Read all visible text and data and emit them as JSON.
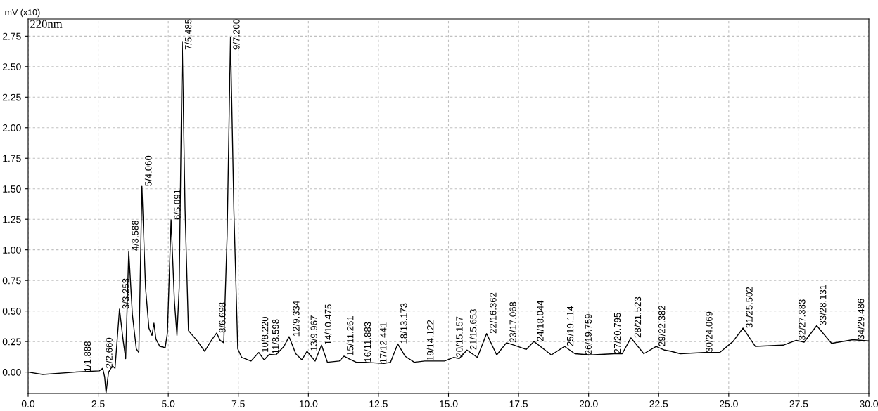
{
  "chart_data": {
    "type": "line",
    "ylabel": "mV (x10)",
    "annotations": [
      "220nm",
      {
        "text": "1/1.888",
        "x": 1.888,
        "y": 0.0
      },
      {
        "text": "2/2.660",
        "x": 2.66,
        "y": 0.03
      },
      {
        "text": "3/3.253",
        "x": 3.253,
        "y": 0.515
      },
      {
        "text": "4/3.588",
        "x": 3.588,
        "y": 0.99
      },
      {
        "text": "5/4.060",
        "x": 4.06,
        "y": 1.52
      },
      {
        "text": "6/5.091",
        "x": 5.091,
        "y": 1.245
      },
      {
        "text": "7/5.485",
        "x": 5.485,
        "y": 2.7
      },
      {
        "text": "8/6.698",
        "x": 6.698,
        "y": 0.32
      },
      {
        "text": "9/7.200",
        "x": 7.2,
        "y": 2.74
      },
      {
        "text": "10/8.220",
        "x": 8.22,
        "y": 0.16
      },
      {
        "text": "11/8.598",
        "x": 8.598,
        "y": 0.145
      },
      {
        "text": "12/9.334",
        "x": 9.334,
        "y": 0.29
      },
      {
        "text": "13/9.967",
        "x": 9.967,
        "y": 0.17
      },
      {
        "text": "14/10.475",
        "x": 10.475,
        "y": 0.22
      },
      {
        "text": "15/11.261",
        "x": 11.261,
        "y": 0.13
      },
      {
        "text": "16/11.883",
        "x": 11.883,
        "y": 0.08
      },
      {
        "text": "17/12.441",
        "x": 12.441,
        "y": 0.07
      },
      {
        "text": "18/13.173",
        "x": 13.173,
        "y": 0.23
      },
      {
        "text": "19/14.122",
        "x": 14.122,
        "y": 0.09
      },
      {
        "text": "20/15.157",
        "x": 15.157,
        "y": 0.12
      },
      {
        "text": "21/15.653",
        "x": 15.653,
        "y": 0.18
      },
      {
        "text": "22/16.362",
        "x": 16.362,
        "y": 0.315
      },
      {
        "text": "23/17.068",
        "x": 17.068,
        "y": 0.24
      },
      {
        "text": "24/18.044",
        "x": 18.044,
        "y": 0.25
      },
      {
        "text": "25/19.114",
        "x": 19.114,
        "y": 0.21
      },
      {
        "text": "26/19.759",
        "x": 19.759,
        "y": 0.14
      },
      {
        "text": "27/20.795",
        "x": 20.795,
        "y": 0.15
      },
      {
        "text": "28/21.523",
        "x": 21.523,
        "y": 0.28
      },
      {
        "text": "29/22.382",
        "x": 22.382,
        "y": 0.21
      },
      {
        "text": "30/24.069",
        "x": 24.069,
        "y": 0.16
      },
      {
        "text": "31/25.502",
        "x": 25.502,
        "y": 0.36
      },
      {
        "text": "32/27.383",
        "x": 27.383,
        "y": 0.26
      },
      {
        "text": "33/28.131",
        "x": 28.131,
        "y": 0.38
      },
      {
        "text": "34/29.486",
        "x": 29.486,
        "y": 0.265
      }
    ],
    "series": [
      {
        "color": "#000000",
        "x": [
          0,
          0.52,
          1.69,
          2.54,
          2.66,
          2.73,
          2.78,
          2.87,
          3.01,
          3.1,
          3.26,
          3.39,
          3.48,
          3.59,
          3.72,
          3.86,
          3.95,
          4.06,
          4.19,
          4.31,
          4.42,
          4.49,
          4.56,
          4.7,
          4.89,
          4.97,
          5.1,
          5.22,
          5.31,
          5.39,
          5.5,
          5.6,
          5.72,
          5.83,
          6.02,
          6.3,
          6.54,
          6.73,
          6.85,
          6.98,
          7.1,
          7.22,
          7.34,
          7.48,
          7.62,
          7.95,
          8.23,
          8.42,
          8.61,
          8.84,
          9.13,
          9.31,
          9.55,
          9.77,
          9.95,
          10.24,
          10.47,
          10.68,
          11.1,
          11.27,
          11.43,
          11.71,
          12.04,
          12.7,
          12.93,
          13.19,
          13.45,
          13.78,
          14.15,
          14.86,
          15.19,
          15.38,
          15.66,
          16.03,
          16.36,
          16.72,
          17.07,
          17.35,
          17.77,
          18.05,
          18.67,
          19.14,
          19.51,
          20.08,
          20.92,
          21.2,
          21.51,
          21.97,
          22.41,
          22.71,
          22.94,
          23.27,
          24.12,
          24.68,
          25.15,
          25.51,
          25.95,
          26.94,
          27.41,
          27.69,
          28.14,
          28.67,
          29.43,
          29.99
        ],
        "values": [
          0,
          -0.02,
          0,
          0.01,
          0.03,
          -0.04,
          -0.17,
          0,
          0.05,
          0.03,
          0.515,
          0.26,
          0.11,
          0.99,
          0.47,
          0.19,
          0.16,
          1.52,
          0.69,
          0.36,
          0.3,
          0.4,
          0.27,
          0.21,
          0.2,
          0.32,
          1.245,
          0.58,
          0.3,
          0.69,
          2.7,
          1.33,
          0.34,
          0.31,
          0.26,
          0.17,
          0.26,
          0.32,
          0.26,
          0.24,
          1.12,
          2.74,
          1.33,
          0.19,
          0.12,
          0.09,
          0.16,
          0.1,
          0.145,
          0.14,
          0.21,
          0.29,
          0.15,
          0.1,
          0.17,
          0.09,
          0.22,
          0.08,
          0.09,
          0.13,
          0.11,
          0.08,
          0.08,
          0.07,
          0.08,
          0.23,
          0.13,
          0.08,
          0.09,
          0.09,
          0.12,
          0.11,
          0.18,
          0.12,
          0.315,
          0.14,
          0.24,
          0.22,
          0.185,
          0.25,
          0.14,
          0.21,
          0.15,
          0.14,
          0.15,
          0.15,
          0.28,
          0.15,
          0.21,
          0.18,
          0.17,
          0.15,
          0.16,
          0.16,
          0.25,
          0.36,
          0.21,
          0.22,
          0.26,
          0.245,
          0.38,
          0.235,
          0.265,
          0.255
        ]
      }
    ],
    "xlim": [
      0,
      30
    ],
    "xticks": [
      {
        "value": 0,
        "label": "0.0"
      },
      {
        "value": 2.5,
        "label": "2.5"
      },
      {
        "value": 5,
        "label": "5.0"
      },
      {
        "value": 7.5,
        "label": "7.5"
      },
      {
        "value": 10,
        "label": "10.0"
      },
      {
        "value": 12.5,
        "label": "12.5"
      },
      {
        "value": 15,
        "label": "15.0"
      },
      {
        "value": 17.5,
        "label": "17.5"
      },
      {
        "value": 20,
        "label": "20.0"
      },
      {
        "value": 22.5,
        "label": "22.5"
      },
      {
        "value": 25,
        "label": "25.0"
      },
      {
        "value": 27.5,
        "label": "27.5"
      },
      {
        "value": 30,
        "label": "30.0"
      }
    ],
    "ylim": [
      -0.175,
      2.89
    ],
    "yticks": [
      {
        "value": 0,
        "label": "0.00"
      },
      {
        "value": 0.25,
        "label": "0.25"
      },
      {
        "value": 0.5,
        "label": "0.50"
      },
      {
        "value": 0.75,
        "label": "0.75"
      },
      {
        "value": 1,
        "label": "1.00"
      },
      {
        "value": 1.25,
        "label": "1.25"
      },
      {
        "value": 1.5,
        "label": "1.50"
      },
      {
        "value": 1.75,
        "label": "1.75"
      },
      {
        "value": 2,
        "label": "2.00"
      },
      {
        "value": 2.25,
        "label": "2.25"
      },
      {
        "value": 2.5,
        "label": "2.50"
      },
      {
        "value": 2.75,
        "label": "2.75"
      }
    ],
    "grid": true,
    "line_style": "solid",
    "marker": "none"
  }
}
